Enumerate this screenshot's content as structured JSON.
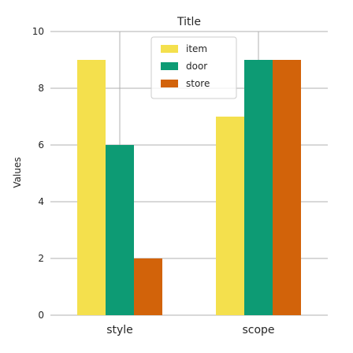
{
  "chart_data": {
    "type": "bar",
    "title": "Title",
    "xlabel": "",
    "ylabel": "Values",
    "categories": [
      "style",
      "scope"
    ],
    "series": [
      {
        "name": "item",
        "color": "#f4e04d",
        "values": [
          9,
          7
        ]
      },
      {
        "name": "door",
        "color": "#0d9b74",
        "values": [
          6,
          9
        ]
      },
      {
        "name": "store",
        "color": "#d2630a",
        "values": [
          2,
          9
        ]
      }
    ],
    "ylim": [
      0,
      10
    ],
    "yticks": [
      0,
      2,
      4,
      6,
      8,
      10
    ],
    "grid": true,
    "legend_position": "top-center"
  }
}
